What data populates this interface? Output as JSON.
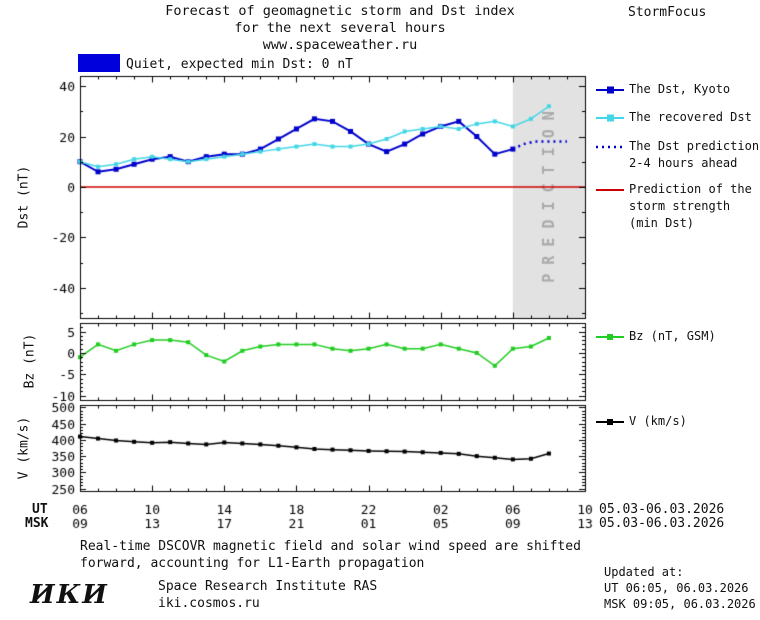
{
  "header": {
    "title_line1": "Forecast of geomagnetic storm and Dst index",
    "title_line2": "for the next several hours",
    "title_line3": "www.spaceweather.ru",
    "brand": "StormFocus"
  },
  "status_legend": {
    "label": "Quiet, expected min Dst: 0 nT",
    "color": "#0000dd"
  },
  "legend": {
    "dst_kyoto": "The Dst, Kyoto",
    "recovered": "The recovered Dst",
    "prediction_line1": "The Dst prediction",
    "prediction_line2": "2-4 hours ahead",
    "storm_line1": "Prediction of the",
    "storm_line2": "storm strength",
    "storm_line3": "(min Dst)",
    "bz": "Bz (nT, GSM)",
    "v": "V (km/s)"
  },
  "axes": {
    "ut_label": "UT",
    "msk_label": "MSK",
    "ut_date": "05.03-06.03.2026",
    "msk_date": "05.03-06.03.2026",
    "dst_title": "Dst (nT)",
    "bz_title": "Bz (nT)",
    "v_title": "V (km/s)"
  },
  "footer": {
    "note_line1": "Real-time DSCOVR magnetic field and solar wind speed are shifted",
    "note_line2": "forward, accounting for L1-Earth propagation",
    "updated_label": "Updated at:",
    "ut_line": "UT  06:05, 06.03.2026",
    "msk_line": "MSK 09:05, 06.03.2026",
    "logo": "ИКИ",
    "institute": "Space Research Institute RAS",
    "site": "iki.cosmos.ru"
  },
  "chart_data": [
    {
      "type": "line",
      "panel": "dst",
      "ylabel": "Dst (nT)",
      "ylim": [
        -52,
        44
      ],
      "yticks": [
        40,
        20,
        0,
        -20,
        -40
      ],
      "y_minor_step": 10,
      "x_hours_range": [
        0,
        28
      ],
      "x_major_ticks_hours": [
        0,
        4,
        8,
        12,
        16,
        20,
        24,
        28
      ],
      "x_tick_labels_ut": [
        "06",
        "10",
        "14",
        "18",
        "22",
        "02",
        "06",
        "10"
      ],
      "x_tick_labels_msk": [
        "09",
        "13",
        "17",
        "21",
        "01",
        "05",
        "09",
        "13"
      ],
      "prediction_region_hours": [
        24,
        28
      ],
      "prediction_label": "PREDICTION",
      "series": [
        {
          "name": "The Dst, Kyoto",
          "color": "#0000cc",
          "line": "solid",
          "width": 2,
          "marker_size": 5,
          "x": [
            0,
            1,
            2,
            3,
            4,
            5,
            6,
            7,
            8,
            9,
            10,
            11,
            12,
            13,
            14,
            15,
            16,
            17,
            18,
            19,
            20,
            21,
            22,
            23,
            24
          ],
          "y": [
            10,
            6,
            7,
            9,
            11,
            12,
            10,
            12,
            13,
            13,
            15,
            19,
            23,
            27,
            26,
            22,
            17,
            14,
            17,
            21,
            24,
            26,
            20,
            13,
            15
          ]
        },
        {
          "name": "The recovered Dst",
          "color": "#44d6e6",
          "line": "solid",
          "width": 1.5,
          "marker_size": 4,
          "x": [
            0,
            1,
            2,
            3,
            4,
            5,
            6,
            7,
            8,
            9,
            10,
            11,
            12,
            13,
            14,
            15,
            16,
            17,
            18,
            19,
            20,
            21,
            22,
            23,
            24,
            25,
            26
          ],
          "y": [
            10,
            8,
            9,
            11,
            12,
            11,
            10,
            11,
            12,
            13,
            14,
            15,
            16,
            17,
            16,
            16,
            17,
            19,
            22,
            23,
            24,
            23,
            25,
            26,
            24,
            27,
            32
          ]
        },
        {
          "name": "The Dst prediction 2-4 hours ahead",
          "color": "#0000cc",
          "line": "dotted",
          "width": 2.5,
          "marker_size": 0,
          "x": [
            24,
            24.6,
            25.2,
            25.8,
            26.4,
            27
          ],
          "y": [
            15,
            17,
            18,
            18,
            18,
            18
          ]
        },
        {
          "name": "Prediction of the storm strength (min Dst)",
          "color": "#cc0000",
          "line": "solid",
          "width": 1.5,
          "marker_size": 0,
          "x": [
            0,
            28
          ],
          "y": [
            0,
            0
          ]
        }
      ]
    },
    {
      "type": "line",
      "panel": "bz",
      "ylabel": "Bz (nT)",
      "ylim": [
        -11,
        7
      ],
      "yticks": [
        5,
        0,
        -5,
        -10
      ],
      "y_minor_step": 1,
      "series": [
        {
          "name": "Bz (nT, GSM)",
          "color": "#22cc22",
          "line": "solid",
          "width": 1.5,
          "marker_size": 4,
          "x": [
            0,
            1,
            2,
            3,
            4,
            5,
            6,
            7,
            8,
            9,
            10,
            11,
            12,
            13,
            14,
            15,
            16,
            17,
            18,
            19,
            20,
            21,
            22,
            23,
            24,
            25,
            26
          ],
          "y": [
            -1,
            2,
            0.5,
            2,
            3,
            3,
            2.5,
            -0.5,
            -2,
            0.5,
            1.5,
            2,
            2,
            2,
            1,
            0.5,
            1,
            2,
            1,
            1,
            2,
            1,
            0,
            -3,
            1,
            1.5,
            3.5
          ]
        }
      ]
    },
    {
      "type": "line",
      "panel": "v",
      "ylabel": "V (km/s)",
      "ylim": [
        243,
        507
      ],
      "yticks": [
        500,
        450,
        400,
        350,
        300,
        250
      ],
      "y_minor_step": 10,
      "series": [
        {
          "name": "V (km/s)",
          "color": "#000000",
          "line": "solid",
          "width": 1.5,
          "marker_size": 4,
          "x": [
            0,
            1,
            2,
            3,
            4,
            5,
            6,
            7,
            8,
            9,
            10,
            11,
            12,
            13,
            14,
            15,
            16,
            17,
            18,
            19,
            20,
            21,
            22,
            23,
            24,
            25,
            26
          ],
          "y": [
            410,
            404,
            398,
            394,
            391,
            393,
            389,
            386,
            392,
            389,
            386,
            382,
            377,
            372,
            370,
            368,
            366,
            365,
            364,
            362,
            360,
            357,
            350,
            345,
            340,
            342,
            358
          ]
        }
      ]
    }
  ]
}
